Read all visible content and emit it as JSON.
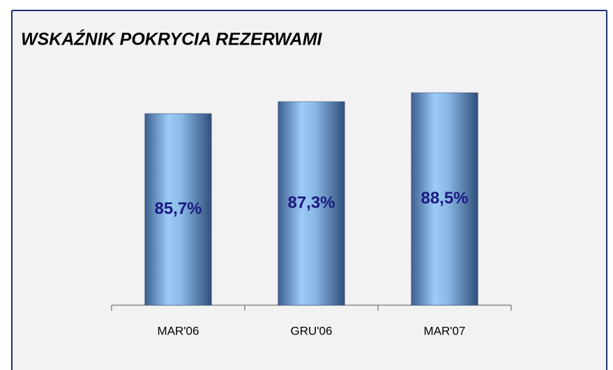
{
  "chart_data": {
    "type": "bar",
    "title": "WSKAŹNIK POKRYCIA REZERWAMI",
    "categories": [
      "MAR'06",
      "GRU'06",
      "MAR'07"
    ],
    "values": [
      85.7,
      87.3,
      88.5
    ],
    "value_labels": [
      "85,7%",
      "87,3%",
      "88,5%"
    ],
    "color": "#8fbff0",
    "ylim": [
      60,
      90
    ]
  }
}
